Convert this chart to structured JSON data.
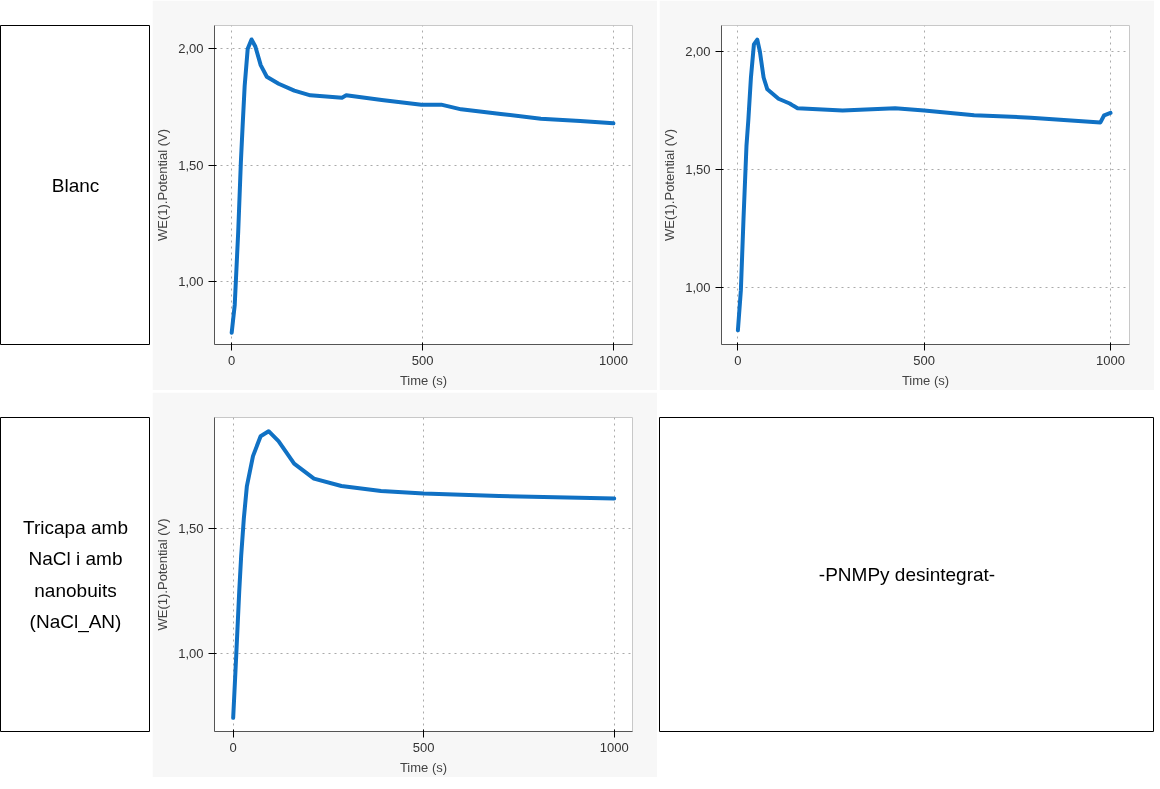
{
  "chart_data": [
    {
      "type": "other",
      "title": "Blanc"
    },
    {
      "type": "line",
      "xlabel": "Time (s)",
      "ylabel": "WE(1).Potential (V)",
      "xlim": [
        -45,
        1050
      ],
      "ylim": [
        0.73,
        2.1
      ],
      "xticks": [
        0,
        500,
        1000
      ],
      "yticks": [
        {
          "value": 1.0,
          "label": "1,00"
        },
        {
          "value": 1.5,
          "label": "1,50"
        },
        {
          "value": 2.0,
          "label": "2,00"
        }
      ],
      "grid": true,
      "line_style": "solid",
      "series": [
        {
          "color": "#1071c4",
          "x": [
            0,
            8,
            17,
            24,
            29,
            34,
            42,
            52,
            62,
            76,
            92,
            123,
            164,
            206,
            289,
            300,
            393,
            497,
            549,
            601,
            705,
            810,
            913,
            1000
          ],
          "values": [
            0.78,
            0.9,
            1.21,
            1.51,
            1.68,
            1.84,
            2.0,
            2.04,
            2.01,
            1.93,
            1.88,
            1.85,
            1.82,
            1.8,
            1.79,
            1.8,
            1.78,
            1.76,
            1.76,
            1.74,
            1.72,
            1.7,
            1.69,
            1.68
          ]
        }
      ]
    },
    {
      "type": "line",
      "xlabel": "Time (s)",
      "ylabel": "WE(1).Potential (V)",
      "xlim": [
        -44,
        1051
      ],
      "ylim": [
        0.76,
        2.11
      ],
      "xticks": [
        0,
        500,
        1000
      ],
      "yticks": [
        {
          "value": 1.0,
          "label": "1,00"
        },
        {
          "value": 1.5,
          "label": "1,50"
        },
        {
          "value": 2.0,
          "label": "2,00"
        }
      ],
      "grid": true,
      "line_style": "solid",
      "series": [
        {
          "color": "#1071c4",
          "x": [
            0,
            8,
            15,
            23,
            28,
            35,
            43,
            52,
            59,
            69,
            79,
            109,
            139,
            149,
            160,
            281,
            422,
            500,
            634,
            786,
            973,
            983,
            1000
          ],
          "values": [
            0.82,
            0.99,
            1.29,
            1.6,
            1.71,
            1.89,
            2.03,
            2.05,
            2.0,
            1.89,
            1.84,
            1.8,
            1.78,
            1.77,
            1.76,
            1.75,
            1.76,
            1.75,
            1.73,
            1.72,
            1.7,
            1.73,
            1.74
          ]
        }
      ]
    },
    {
      "type": "other",
      "title": "Tricapa amb NaCl i amb nanobuits (NaCl_AN)"
    },
    {
      "type": "line",
      "xlabel": "Time (s)",
      "ylabel": "WE(1).Potential (V)",
      "xlim": [
        -49,
        1048
      ],
      "ylim": [
        0.685,
        1.945
      ],
      "xticks": [
        0,
        500,
        1000
      ],
      "yticks": [
        {
          "value": 1.0,
          "label": "1,00"
        },
        {
          "value": 1.5,
          "label": "1,50"
        }
      ],
      "grid": true,
      "line_style": "solid",
      "series": [
        {
          "color": "#1071c4",
          "x": [
            0,
            8,
            16,
            21,
            28,
            36,
            52,
            72,
            93,
            119,
            160,
            212,
            284,
            388,
            500,
            698,
            1000
          ],
          "values": [
            0.74,
            0.99,
            1.25,
            1.39,
            1.54,
            1.67,
            1.79,
            1.87,
            1.89,
            1.85,
            1.76,
            1.7,
            1.67,
            1.65,
            1.64,
            1.63,
            1.62
          ]
        }
      ]
    },
    {
      "type": "other",
      "title": "-PNMPy desintegrat-"
    }
  ]
}
